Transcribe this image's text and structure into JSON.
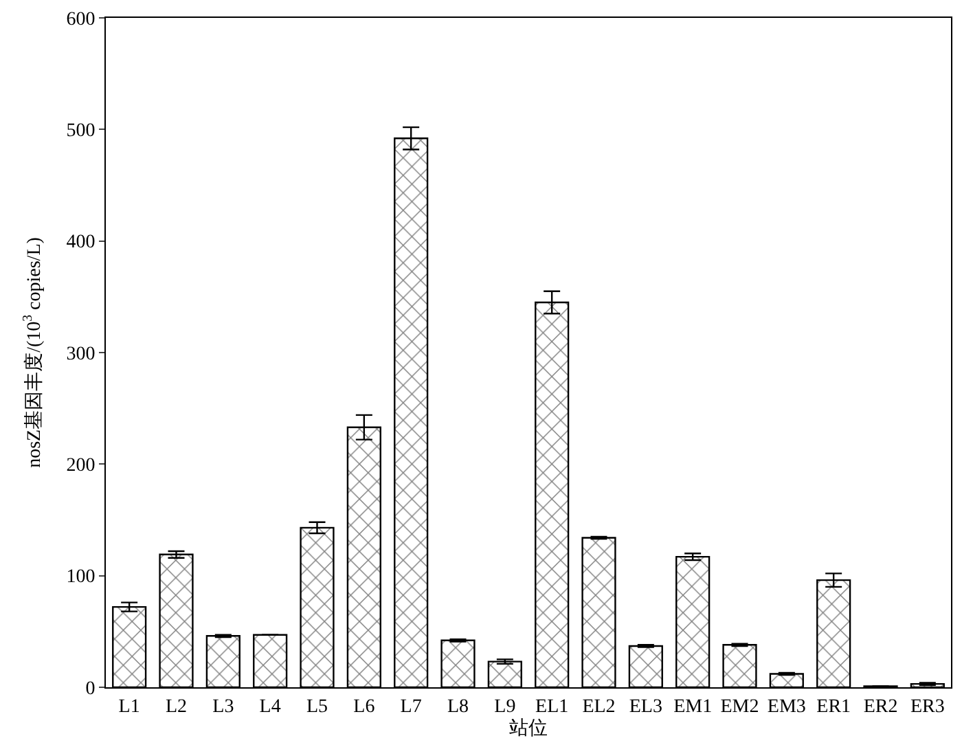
{
  "chart_data": {
    "type": "bar",
    "xlabel": "站位",
    "ylabel": "nosZ基因丰度/(10$^{3}$ copies/L)",
    "categories": [
      "L1",
      "L2",
      "L3",
      "L4",
      "L5",
      "L6",
      "L7",
      "L8",
      "L9",
      "EL1",
      "EL2",
      "EL3",
      "EM1",
      "EM2",
      "EM3",
      "ER1",
      "ER2",
      "ER3"
    ],
    "values": [
      72,
      119,
      46,
      47,
      143,
      233,
      492,
      42,
      23,
      345,
      134,
      37,
      117,
      38,
      12,
      96,
      1,
      3
    ],
    "errors": [
      4,
      3,
      1,
      null,
      5,
      11,
      10,
      1,
      2,
      10,
      1,
      1,
      3,
      1,
      1,
      6,
      null,
      1
    ],
    "color": "#000000",
    "ylim": [
      0,
      600
    ],
    "yticks": [
      0,
      100,
      200,
      300,
      400,
      500,
      600
    ]
  }
}
